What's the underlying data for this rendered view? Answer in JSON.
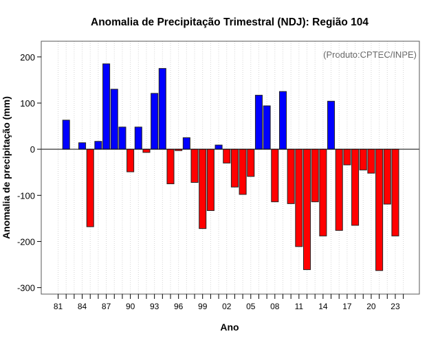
{
  "chart_data": {
    "type": "bar",
    "title": "Anomalia de Precipitação Trimestral (NDJ): Região 104",
    "xlabel": "Ano",
    "ylabel": "Anomalia de precipitação (mm)",
    "credit": "(Produto:CPTEC/INPE)",
    "x": [
      1981,
      1982,
      1983,
      1984,
      1985,
      1986,
      1987,
      1988,
      1989,
      1990,
      1991,
      1992,
      1993,
      1994,
      1995,
      1996,
      1997,
      1998,
      1999,
      2000,
      2001,
      2002,
      2003,
      2004,
      2005,
      2006,
      2007,
      2008,
      2009,
      2010,
      2011,
      2012,
      2013,
      2014,
      2015,
      2016,
      2017,
      2018,
      2019,
      2020,
      2021,
      2022,
      2023
    ],
    "values": [
      0,
      63,
      0,
      14,
      -168,
      17,
      185,
      130,
      48,
      -49,
      48,
      -7,
      121,
      175,
      -75,
      -3,
      25,
      -72,
      -172,
      -133,
      9,
      -30,
      -82,
      -98,
      -59,
      117,
      94,
      -114,
      125,
      -118,
      -211,
      -261,
      -114,
      -188,
      104,
      -176,
      -34,
      -165,
      -45,
      -52,
      -263,
      -119,
      -188
    ],
    "xlim": [
      1978.9,
      2026.0
    ],
    "ylim": [
      -314,
      234
    ],
    "yticks": [
      -300,
      -200,
      -100,
      0,
      100,
      200
    ],
    "xticks": [
      1981,
      1982,
      1983,
      1984,
      1985,
      1986,
      1987,
      1988,
      1989,
      1990,
      1991,
      1992,
      1993,
      1994,
      1995,
      1996,
      1997,
      1998,
      1999,
      2000,
      2001,
      2002,
      2003,
      2004,
      2005,
      2006,
      2007,
      2008,
      2009,
      2010,
      2011,
      2012,
      2013,
      2014,
      2015,
      2016,
      2017,
      2018,
      2019,
      2020,
      2021,
      2022,
      2023,
      2024
    ],
    "xtick_labels": [
      {
        "year": 1981,
        "label": "81"
      },
      {
        "year": 1984,
        "label": "84"
      },
      {
        "year": 1987,
        "label": "87"
      },
      {
        "year": 1990,
        "label": "90"
      },
      {
        "year": 1993,
        "label": "93"
      },
      {
        "year": 1996,
        "label": "96"
      },
      {
        "year": 1999,
        "label": "99"
      },
      {
        "year": 2002,
        "label": "02"
      },
      {
        "year": 2005,
        "label": "05"
      },
      {
        "year": 2008,
        "label": "08"
      },
      {
        "year": 2011,
        "label": "11"
      },
      {
        "year": 2014,
        "label": "14"
      },
      {
        "year": 2017,
        "label": "17"
      },
      {
        "year": 2020,
        "label": "20"
      },
      {
        "year": 2023,
        "label": "23"
      }
    ],
    "grid": "vertical dotted per year",
    "colors": {
      "positive": "#0000ff",
      "negative": "#ff0000",
      "credit": "#666666"
    }
  }
}
